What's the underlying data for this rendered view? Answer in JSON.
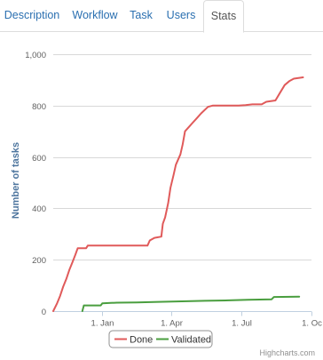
{
  "tabs": [
    {
      "label": "Description",
      "active": false
    },
    {
      "label": "Workflow",
      "active": false
    },
    {
      "label": "Task",
      "active": false
    },
    {
      "label": "Users",
      "active": false
    },
    {
      "label": "Stats",
      "active": true
    }
  ],
  "credits": "Highcharts.com",
  "chart_data": {
    "type": "line",
    "title": "",
    "xlabel": "",
    "ylabel": "Number of tasks",
    "ylim": [
      0,
      1000
    ],
    "yticks": [
      0,
      200,
      400,
      600,
      800,
      1000
    ],
    "ytick_labels": [
      "0",
      "200",
      "400",
      "600",
      "800",
      "1,000"
    ],
    "xlim": [
      "2012-10-29",
      "2013-10-01"
    ],
    "xticks": [
      "2013-01-01",
      "2013-04-01",
      "2013-07-01",
      "2013-10-01"
    ],
    "xtick_labels": [
      "1. Jan",
      "1. Apr",
      "1. Jul",
      "1. Oc"
    ],
    "grid": true,
    "legend": "bottom-center",
    "series": [
      {
        "name": "Done",
        "color": "#e05a5a",
        "points": [
          [
            "2012-10-29",
            0
          ],
          [
            "2012-11-03",
            30
          ],
          [
            "2012-11-07",
            60
          ],
          [
            "2012-11-11",
            95
          ],
          [
            "2012-11-15",
            125
          ],
          [
            "2012-11-19",
            160
          ],
          [
            "2012-11-23",
            190
          ],
          [
            "2012-11-27",
            220
          ],
          [
            "2012-11-30",
            245
          ],
          [
            "2012-12-11",
            245
          ],
          [
            "2012-12-13",
            255
          ],
          [
            "2013-03-01",
            255
          ],
          [
            "2013-03-04",
            275
          ],
          [
            "2013-03-10",
            285
          ],
          [
            "2013-03-19",
            290
          ],
          [
            "2013-03-21",
            340
          ],
          [
            "2013-03-24",
            365
          ],
          [
            "2013-03-28",
            420
          ],
          [
            "2013-03-31",
            480
          ],
          [
            "2013-04-04",
            530
          ],
          [
            "2013-04-07",
            570
          ],
          [
            "2013-04-13",
            610
          ],
          [
            "2013-04-16",
            650
          ],
          [
            "2013-04-19",
            700
          ],
          [
            "2013-04-25",
            720
          ],
          [
            "2013-04-28",
            730
          ],
          [
            "2013-05-04",
            750
          ],
          [
            "2013-05-10",
            770
          ],
          [
            "2013-05-19",
            795
          ],
          [
            "2013-05-25",
            800
          ],
          [
            "2013-06-28",
            800
          ],
          [
            "2013-07-07",
            802
          ],
          [
            "2013-07-16",
            805
          ],
          [
            "2013-07-28",
            805
          ],
          [
            "2013-08-03",
            815
          ],
          [
            "2013-08-15",
            820
          ],
          [
            "2013-08-21",
            850
          ],
          [
            "2013-08-27",
            880
          ],
          [
            "2013-09-02",
            895
          ],
          [
            "2013-09-08",
            905
          ],
          [
            "2013-09-20",
            910
          ]
        ]
      },
      {
        "name": "Validated",
        "color": "#4a9e3f",
        "points": [
          [
            "2012-12-06",
            0
          ],
          [
            "2012-12-08",
            22
          ],
          [
            "2012-12-30",
            22
          ],
          [
            "2013-01-01",
            30
          ],
          [
            "2013-01-12",
            32
          ],
          [
            "2013-01-20",
            33
          ],
          [
            "2013-02-15",
            34
          ],
          [
            "2013-03-15",
            36
          ],
          [
            "2013-04-15",
            38
          ],
          [
            "2013-05-15",
            40
          ],
          [
            "2013-06-15",
            42
          ],
          [
            "2013-07-10",
            44
          ],
          [
            "2013-08-10",
            46
          ],
          [
            "2013-08-13",
            55
          ],
          [
            "2013-09-15",
            56
          ]
        ]
      }
    ]
  }
}
